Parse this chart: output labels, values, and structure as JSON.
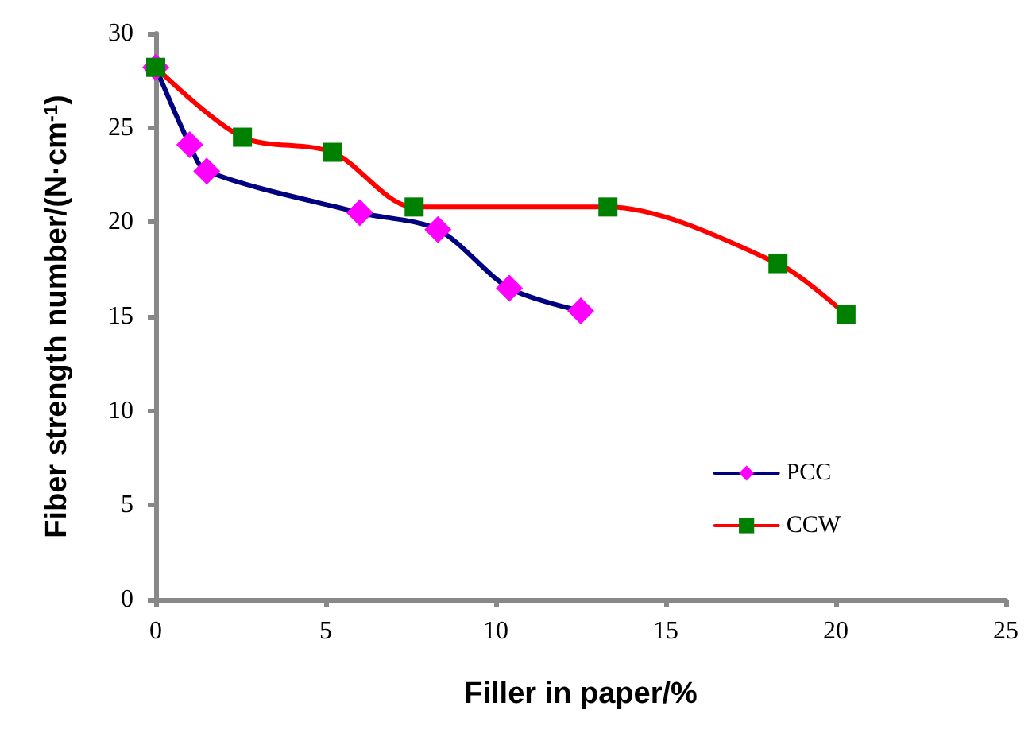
{
  "chart_data": {
    "type": "line",
    "xlabel": "Filler in paper/%",
    "ylabel": "Fiber strength number/(N·cm$^{-1}$)",
    "xlim": [
      0,
      25
    ],
    "xticks": [
      0,
      5,
      10,
      15,
      20,
      25
    ],
    "ylim": [
      0,
      30
    ],
    "yticks": [
      0,
      5,
      10,
      15,
      20,
      25,
      30
    ],
    "grid": false,
    "legend": "bottom right",
    "series": [
      {
        "name": "PCC",
        "color": "#000080",
        "marker": "diamond",
        "colors": [
          "#ff00ff",
          "#ff00ff",
          "#ff00ff",
          "#ff00ff",
          "#ff00ff",
          "#ff00ff",
          "#ff00ff"
        ],
        "x": [
          0,
          1.0,
          1.5,
          6.0,
          8.3,
          10.4,
          12.5
        ],
        "values": [
          28.2,
          24.1,
          22.7,
          20.5,
          19.6,
          16.5,
          15.3
        ]
      },
      {
        "name": "CCW",
        "color": "#ff0000",
        "marker": "square",
        "colors": [
          "#008000",
          "#008000",
          "#008000",
          "#008000",
          "#008000",
          "#008000",
          "#008000"
        ],
        "x": [
          0,
          2.55,
          5.2,
          7.6,
          13.3,
          18.3,
          20.3
        ],
        "values": [
          28.2,
          24.5,
          23.7,
          20.8,
          20.8,
          17.8,
          15.1
        ]
      }
    ]
  }
}
